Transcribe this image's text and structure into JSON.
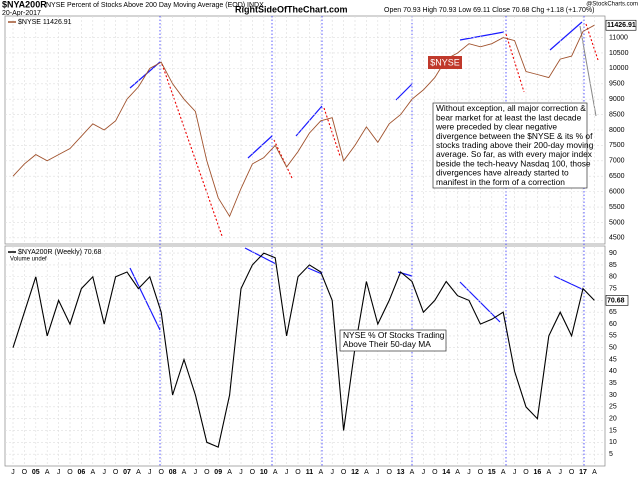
{
  "header": {
    "symbol": "$NYA200R",
    "description": "NYSE Percent of Stocks Above 200 Day Moving Average (EOD) INDX",
    "date": "20-Apr-2017",
    "site": "RightSideOfTheChart.com",
    "ohlc": "Open 70.93  High 70.93  Low 69.11  Close 70.68  Chg +1.18 (+1.70%)",
    "credit": "@StockCharts.com"
  },
  "chart_data": [
    {
      "type": "line",
      "name": "$NYSE 11426.91",
      "color": "#a0522d",
      "last_label": "11426.91",
      "values": [
        6500,
        6900,
        7200,
        7000,
        7200,
        7400,
        7800,
        8200,
        8000,
        8300,
        9000,
        9400,
        10000,
        10200,
        9500,
        9000,
        8600,
        7000,
        5800,
        5200,
        6100,
        6900,
        7100,
        7500,
        6800,
        7300,
        7900,
        8300,
        8400,
        7000,
        7500,
        8100,
        7600,
        8200,
        8500,
        9000,
        9300,
        9700,
        10300,
        10500,
        10800,
        10700,
        10800,
        11000,
        10900,
        9900,
        9800,
        9700,
        10300,
        10400,
        11200,
        11400
      ],
      "ylim": [
        4300,
        11700
      ],
      "yticks": [
        4500,
        5000,
        5500,
        6000,
        6500,
        7000,
        7500,
        8000,
        8500,
        9000,
        9500,
        10000,
        10500,
        11000
      ],
      "grid": true,
      "tag": "$NYSE",
      "annotation": [
        "Without exception, all major correction &",
        "bear market for at least the last decade",
        "were preceded by clear negative",
        "divergence between the $NYSE & its % of",
        "stocks trading above their 200-day moving",
        "average. So far, as with every major index",
        "beside the tech-heavy Nasdaq 100, those",
        "divergences have already started to",
        "manifest in the form of a correction"
      ]
    },
    {
      "type": "line",
      "name": "$NYA200R (Weekly) 70.68",
      "subname": "Volume undef",
      "color": "#000000",
      "last_label": "70.68",
      "categories": [
        "J",
        "O",
        "05",
        "A",
        "J",
        "O",
        "06",
        "A",
        "J",
        "O",
        "07",
        "A",
        "J",
        "O",
        "08",
        "A",
        "J",
        "O",
        "09",
        "A",
        "J",
        "O",
        "10",
        "A",
        "J",
        "O",
        "11",
        "A",
        "J",
        "O",
        "12",
        "A",
        "J",
        "O",
        "13",
        "A",
        "J",
        "O",
        "14",
        "A",
        "J",
        "O",
        "15",
        "A",
        "J",
        "O",
        "16",
        "A",
        "J",
        "O",
        "17",
        "A"
      ],
      "values": [
        50,
        65,
        80,
        55,
        70,
        60,
        75,
        80,
        60,
        80,
        82,
        75,
        80,
        65,
        30,
        45,
        30,
        10,
        8,
        30,
        75,
        85,
        90,
        88,
        55,
        80,
        85,
        82,
        70,
        15,
        50,
        78,
        60,
        70,
        82,
        78,
        65,
        70,
        78,
        72,
        70,
        60,
        62,
        65,
        40,
        25,
        20,
        55,
        65,
        55,
        75,
        70
      ],
      "ylim": [
        0,
        93
      ],
      "yticks": [
        5,
        10,
        15,
        20,
        25,
        30,
        35,
        40,
        45,
        50,
        55,
        60,
        65,
        70,
        75,
        80,
        85,
        90
      ],
      "grid": true,
      "annotation": [
        "NYSE % Of Stocks Trading",
        "Above Their 50-day MA"
      ]
    }
  ]
}
